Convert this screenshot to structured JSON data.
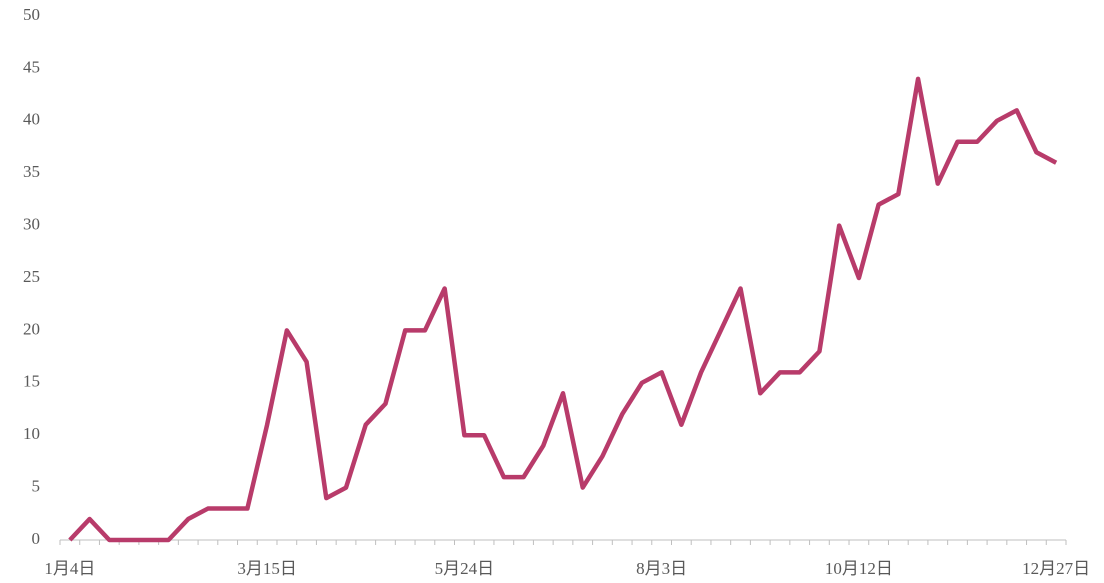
{
  "chart_data": {
    "type": "line",
    "categories": [
      "1月4日",
      null,
      null,
      null,
      null,
      null,
      null,
      null,
      null,
      null,
      "3月15日",
      null,
      null,
      null,
      null,
      null,
      null,
      null,
      null,
      null,
      "5月24日",
      null,
      null,
      null,
      null,
      null,
      null,
      null,
      null,
      null,
      "8月3日",
      null,
      null,
      null,
      null,
      null,
      null,
      null,
      null,
      null,
      "10月12日",
      null,
      null,
      null,
      null,
      null,
      null,
      null,
      null,
      null,
      "12月27日"
    ],
    "series": [
      {
        "color": "#b83b6a",
        "values": [
          0,
          2,
          0,
          0,
          0,
          0,
          2,
          3,
          3,
          3,
          11,
          20,
          17,
          4,
          5,
          11,
          13,
          20,
          20,
          24,
          10,
          10,
          6,
          6,
          9,
          14,
          5,
          8,
          12,
          15,
          16,
          11,
          16,
          20,
          24,
          14,
          16,
          16,
          18,
          30,
          25,
          32,
          33,
          44,
          34,
          38,
          38,
          40,
          41,
          37,
          36
        ]
      }
    ],
    "ylim": [
      0,
      50
    ],
    "yticks": [
      0,
      5,
      10,
      15,
      20,
      25,
      30,
      35,
      40,
      45,
      50
    ],
    "grid": false
  }
}
